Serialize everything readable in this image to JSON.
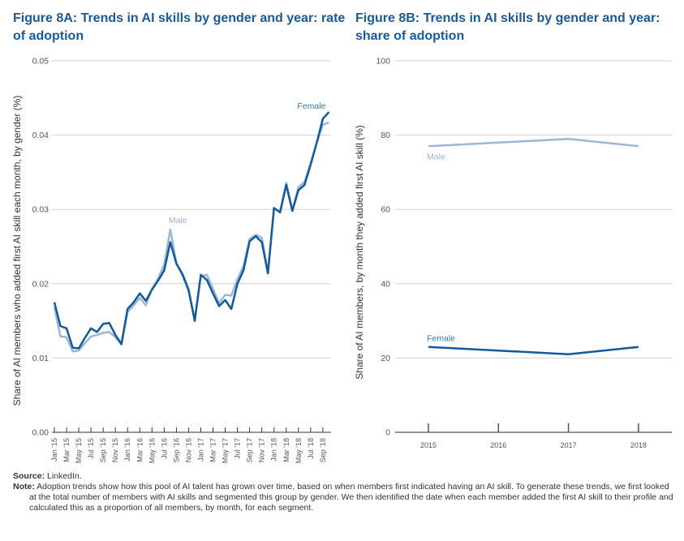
{
  "chart_data": [
    {
      "id": "fig8a",
      "type": "line",
      "title": "Figure 8A: Trends in AI skills by gender and year: rate of adoption",
      "xlabel": "",
      "ylabel": "Share of AI members who added first AI skill each month, by gender (%)",
      "ylim": [
        0,
        0.05
      ],
      "yticks": [
        "0.00",
        "0.01",
        "0.02",
        "0.03",
        "0.04",
        "0.05"
      ],
      "yticks_values": [
        0,
        0.01,
        0.02,
        0.03,
        0.04,
        0.05
      ],
      "grid": true,
      "xtick_labels": [
        "Jan '15",
        "Mar '15",
        "May '15",
        "Jul '15",
        "Sep '15",
        "Nov '15",
        "Jan '16",
        "Mar '16",
        "May '16",
        "Jul '16",
        "Sep '16",
        "Nov '16",
        "Jan '17",
        "Mar '17",
        "May '17",
        "Jul '17",
        "Sep '17",
        "Nov '17",
        "Jan '18",
        "Mar '18",
        "May '18",
        "Jul '18",
        "Sep '18"
      ],
      "x_months_count": 46,
      "series": [
        {
          "name": "Male",
          "color": "#9db5d8",
          "label_position": "near peak Jul '16",
          "values": [
            0.0168,
            0.0129,
            0.0128,
            0.0109,
            0.011,
            0.012,
            0.0129,
            0.0131,
            0.0134,
            0.0135,
            0.0128,
            0.0118,
            0.0162,
            0.0171,
            0.0181,
            0.0171,
            0.0193,
            0.0207,
            0.0226,
            0.0273,
            0.0228,
            0.0211,
            0.019,
            0.0152,
            0.021,
            0.0212,
            0.0193,
            0.0174,
            0.0185,
            0.0184,
            0.0206,
            0.0224,
            0.026,
            0.0266,
            0.0262,
            0.0215,
            0.0301,
            0.0297,
            0.0336,
            0.0299,
            0.033,
            0.0337,
            0.0362,
            0.039,
            0.0414,
            0.0417
          ]
        },
        {
          "name": "Female",
          "color": "#125a9c",
          "label_position": "end",
          "values": [
            0.0175,
            0.0143,
            0.014,
            0.0114,
            0.0113,
            0.0127,
            0.014,
            0.0135,
            0.0146,
            0.0147,
            0.0131,
            0.0119,
            0.0166,
            0.0175,
            0.0187,
            0.0177,
            0.0192,
            0.0204,
            0.0218,
            0.0256,
            0.0227,
            0.0213,
            0.0192,
            0.015,
            0.0212,
            0.0205,
            0.0187,
            0.017,
            0.0178,
            0.0166,
            0.02,
            0.0218,
            0.0257,
            0.0264,
            0.0256,
            0.0214,
            0.0302,
            0.0296,
            0.0333,
            0.0298,
            0.0326,
            0.0333,
            0.036,
            0.039,
            0.0422,
            0.0431
          ]
        }
      ]
    },
    {
      "id": "fig8b",
      "type": "line",
      "title": "Figure 8B: Trends in AI skills by gender and year: share of adoption",
      "xlabel": "",
      "ylabel": "Share of AI members, by month they added first AI skill (%)",
      "ylim": [
        0,
        100
      ],
      "yticks": [
        "0",
        "20",
        "40",
        "60",
        "80",
        "100"
      ],
      "yticks_values": [
        0,
        20,
        40,
        60,
        80,
        100
      ],
      "grid": true,
      "categories": [
        "2015",
        "2016",
        "2017",
        "2018"
      ],
      "series": [
        {
          "name": "Male",
          "color": "#9db5d8",
          "label_position": "below start",
          "values": [
            77,
            78,
            79,
            77
          ]
        },
        {
          "name": "Female",
          "color": "#125a9c",
          "label_position": "above start",
          "values": [
            23,
            22,
            21,
            23
          ]
        }
      ]
    }
  ],
  "footer": {
    "source_label": "Source:",
    "source_text": " LinkedIn.",
    "note_label": "Note:",
    "note_text": " Adoption trends show how this pool of AI talent has grown over time, based on when members first indicated having an AI skill. To generate these trends, we first looked at the total number of members with AI skills and segmented this group by gender. We then identified the date when each member added the first AI skill to their profile and calculated this as a proportion of all members, by month, for each segment."
  }
}
